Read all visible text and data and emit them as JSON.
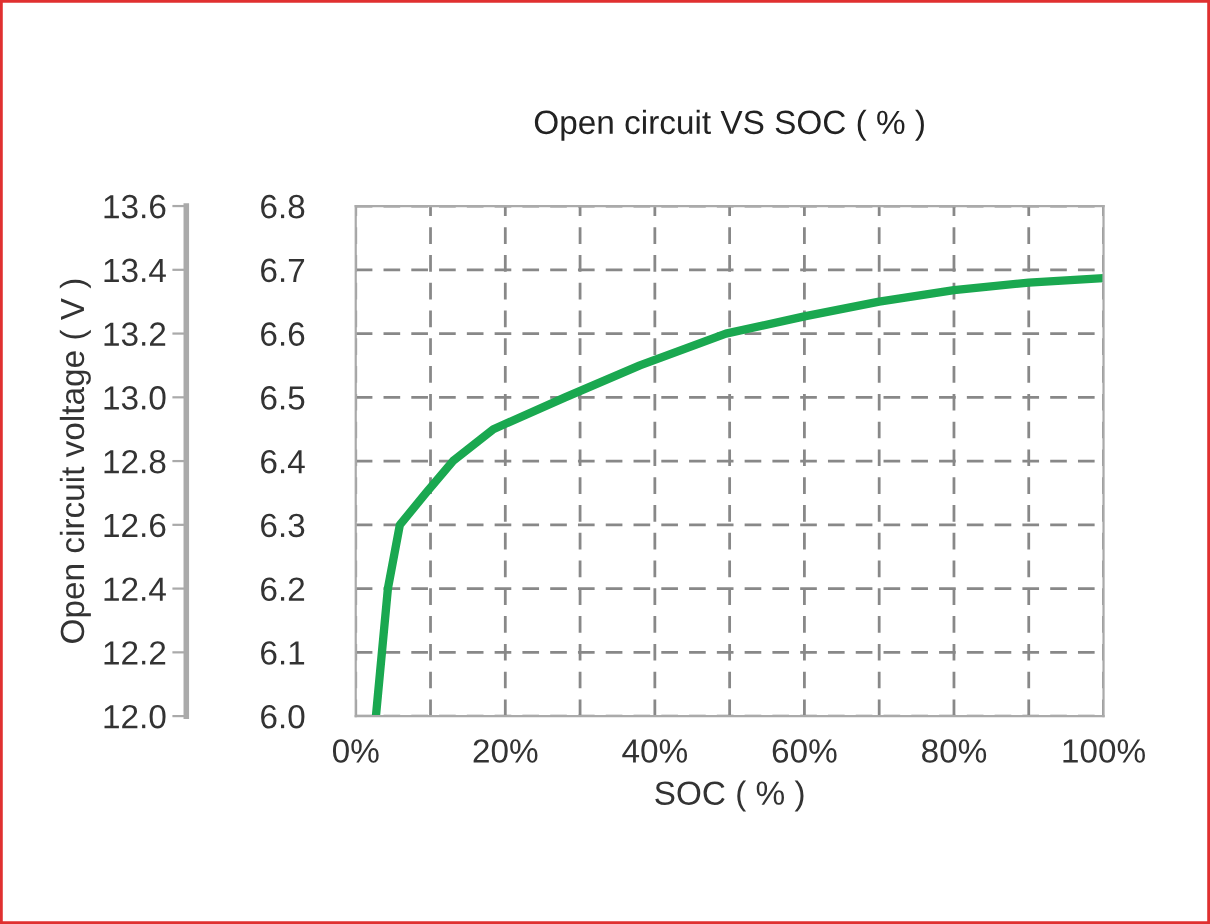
{
  "chart_data": {
    "type": "line",
    "title": "Open circuit VS SOC ( % )",
    "xlabel": "SOC ( % )",
    "y2label": "Open circuit voltage ( V )",
    "series": [
      {
        "color": "#1aa850",
        "x": [
          2.7,
          3.5,
          4.3,
          5.9,
          9.4,
          13,
          18.4,
          28,
          38,
          49.5,
          60,
          70,
          80,
          90,
          100
        ],
        "values": [
          6.0,
          6.1,
          6.2,
          6.3,
          6.35,
          6.4,
          6.45,
          6.5,
          6.55,
          6.6,
          6.627,
          6.65,
          6.668,
          6.68,
          6.687
        ]
      }
    ],
    "xlim": [
      0,
      100
    ],
    "xticks": [
      {
        "value": 0,
        "label": "0%"
      },
      {
        "value": 10,
        "label": null
      },
      {
        "value": 20,
        "label": "20%"
      },
      {
        "value": 30,
        "label": null
      },
      {
        "value": 40,
        "label": "40%"
      },
      {
        "value": 50,
        "label": null
      },
      {
        "value": 60,
        "label": "60%"
      },
      {
        "value": 70,
        "label": null
      },
      {
        "value": 80,
        "label": "80%"
      },
      {
        "value": 90,
        "label": null
      },
      {
        "value": 100,
        "label": "100%"
      }
    ],
    "ylim": [
      6.0,
      6.8
    ],
    "yticks": [
      {
        "value": 6.0,
        "label": "6.0"
      },
      6.1,
      6.2,
      6.3,
      6.4,
      6.5,
      6.6,
      6.7,
      6.8
    ],
    "y2lim": [
      12.0,
      13.6
    ],
    "y2ticks": [
      {
        "value": 12.0,
        "label": "12.0"
      },
      12.2,
      12.4,
      12.6,
      12.8,
      {
        "value": 13.0,
        "label": "13.0"
      },
      13.2,
      13.4,
      13.6
    ],
    "grid": true,
    "line_style": "solid",
    "marker": "none"
  }
}
